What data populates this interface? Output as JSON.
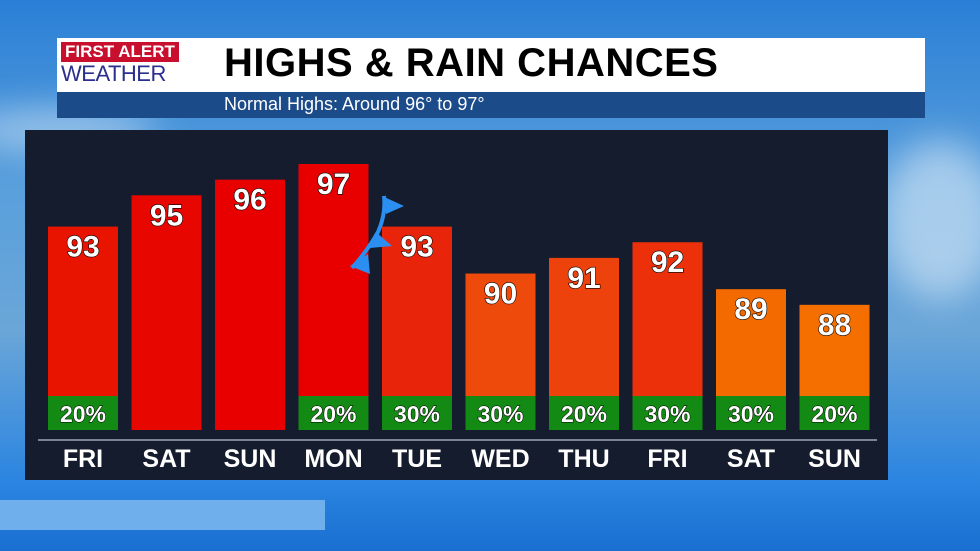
{
  "header": {
    "logo_line1": "FIRST ALERT",
    "logo_line2": "WEATHER",
    "title": "HIGHS & RAIN CHANCES",
    "subtitle": "Normal Highs: Around 96° to 97°"
  },
  "chart_data": {
    "type": "bar",
    "categories": [
      "FRI",
      "SAT",
      "SUN",
      "MON",
      "TUE",
      "WED",
      "THU",
      "FRI",
      "SAT",
      "SUN"
    ],
    "values": [
      93,
      95,
      96,
      97,
      93,
      90,
      91,
      92,
      89,
      88
    ],
    "rain_chance": [
      "20%",
      "",
      "",
      "20%",
      "30%",
      "30%",
      "20%",
      "30%",
      "30%",
      "20%"
    ],
    "colors": [
      "#e81400",
      "#e80600",
      "#e80000",
      "#e80000",
      "#e8240a",
      "#ee4a0c",
      "#ee420c",
      "#ec300a",
      "#f26a00",
      "#f56e00"
    ],
    "rain_color": "#138a13",
    "annotation": "cold-front-symbol",
    "ylim": [
      80,
      98
    ]
  }
}
